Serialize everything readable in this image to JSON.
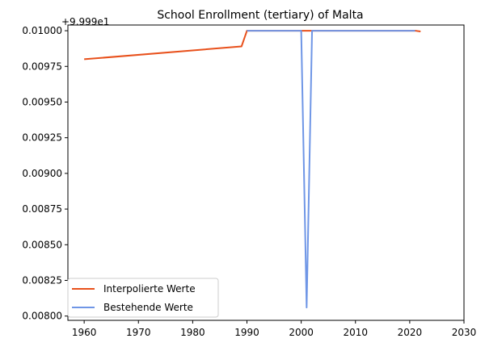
{
  "chart_data": {
    "type": "line",
    "title": "School Enrollment (tertiary) of Malta",
    "xlabel": "",
    "ylabel": "",
    "y_offset_label": "+9.999e1",
    "xlim": [
      1957,
      2030
    ],
    "ylim": [
      0.00797,
      0.01004
    ],
    "x_ticks": [
      1960,
      1970,
      1980,
      1990,
      2000,
      2010,
      2020,
      2030
    ],
    "x_tick_labels": [
      "1960",
      "1970",
      "1980",
      "1990",
      "2000",
      "2010",
      "2020",
      "2030"
    ],
    "y_ticks": [
      0.008,
      0.00825,
      0.0085,
      0.00875,
      0.009,
      0.00925,
      0.0095,
      0.00975,
      0.01
    ],
    "y_tick_labels": [
      "0.00800",
      "0.00825",
      "0.00850",
      "0.00875",
      "0.00900",
      "0.00925",
      "0.00950",
      "0.00975",
      "0.01000"
    ],
    "grid": false,
    "legend_position": "lower-left",
    "series": [
      {
        "name": "Interpolierte Werte",
        "color": "#e8501b",
        "x": [
          1960,
          1989,
          1990,
          2021,
          2022
        ],
        "y": [
          0.0098,
          0.00989,
          0.01,
          0.01,
          0.009995
        ]
      },
      {
        "name": "Bestehende Werte",
        "color": "#6f96e6",
        "x": [
          1990,
          2000,
          2001,
          2002,
          2021
        ],
        "y": [
          0.01,
          0.01,
          0.00806,
          0.01,
          0.01
        ]
      }
    ]
  }
}
